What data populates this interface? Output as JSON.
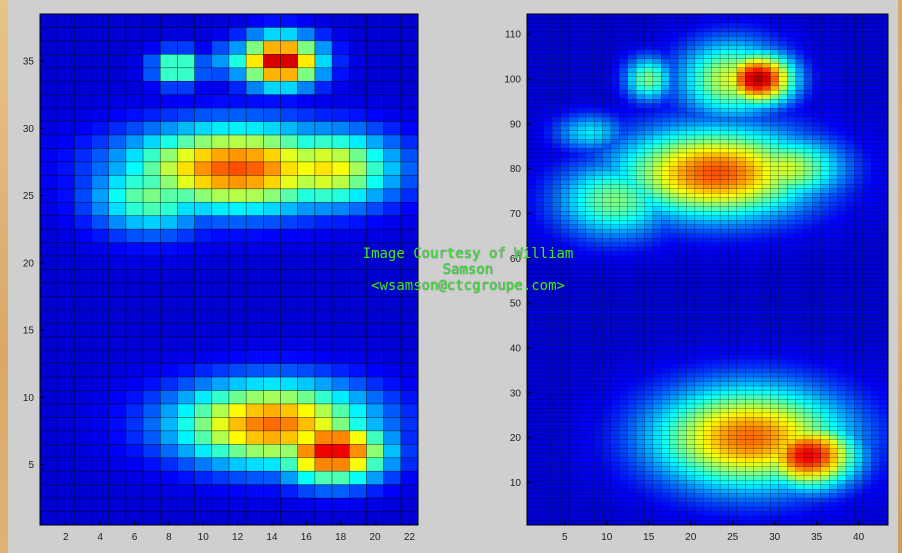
{
  "watermark": {
    "line1": "Image Courtesy of William",
    "line2": "Samson",
    "line3": "<wsamson@ctcgroupe.com>"
  },
  "colors": {
    "colormap": [
      "#00008f",
      "#0000ff",
      "#0080ff",
      "#00ffff",
      "#80ff80",
      "#ffff00",
      "#ff8000",
      "#ff0000",
      "#800000"
    ],
    "frame": "#cfcfcf"
  },
  "chart_data": [
    {
      "type": "heatmap",
      "colormap": "jet",
      "grid": "on",
      "xticks": [
        "2",
        "4",
        "6",
        "8",
        "10",
        "12",
        "14",
        "16",
        "18",
        "20",
        "22"
      ],
      "yticks": [
        "5",
        "10",
        "15",
        "20",
        "25",
        "30",
        "35"
      ],
      "xlim": [
        0.5,
        22.5
      ],
      "ylim": [
        0.5,
        38.5
      ],
      "blobs": [
        {
          "x": 14.5,
          "y": 35,
          "sx": 1.6,
          "sy": 1.3,
          "v": 0.95
        },
        {
          "x": 17.5,
          "y": 6,
          "sx": 2.2,
          "sy": 1.6,
          "v": 0.9
        },
        {
          "x": 14,
          "y": 8,
          "sx": 4,
          "sy": 2.2,
          "v": 0.75
        },
        {
          "x": 12,
          "y": 27,
          "sx": 4.5,
          "sy": 2.2,
          "v": 0.78
        },
        {
          "x": 17,
          "y": 27,
          "sx": 3,
          "sy": 2,
          "v": 0.62
        },
        {
          "x": 7,
          "y": 25,
          "sx": 2.5,
          "sy": 2,
          "v": 0.45
        },
        {
          "x": 8.5,
          "y": 34.5,
          "sx": 1,
          "sy": 0.9,
          "v": 0.5
        },
        {
          "x": 12,
          "y": 35,
          "sx": 1,
          "sy": 1,
          "v": 0.35
        }
      ]
    },
    {
      "type": "heatmap",
      "colormap": "jet",
      "grid": "on",
      "xticks": [
        "5",
        "10",
        "15",
        "20",
        "25",
        "30",
        "35",
        "40"
      ],
      "yticks": [
        "10",
        "20",
        "30",
        "40",
        "50",
        "60",
        "70",
        "80",
        "90",
        "100",
        "110"
      ],
      "xlim": [
        0.5,
        43.5
      ],
      "ylim": [
        0.5,
        114.5
      ],
      "blobs": [
        {
          "x": 28,
          "y": 100,
          "sx": 3,
          "sy": 4,
          "v": 0.95
        },
        {
          "x": 25,
          "y": 100,
          "sx": 4.5,
          "sy": 6,
          "v": 0.55
        },
        {
          "x": 15,
          "y": 100,
          "sx": 2,
          "sy": 3.5,
          "v": 0.45
        },
        {
          "x": 23,
          "y": 79,
          "sx": 8,
          "sy": 7,
          "v": 0.78
        },
        {
          "x": 31,
          "y": 80,
          "sx": 5,
          "sy": 5,
          "v": 0.55
        },
        {
          "x": 11,
          "y": 73,
          "sx": 5,
          "sy": 6,
          "v": 0.45
        },
        {
          "x": 8,
          "y": 88,
          "sx": 3,
          "sy": 3,
          "v": 0.3
        },
        {
          "x": 34,
          "y": 16,
          "sx": 4,
          "sy": 5,
          "v": 0.88
        },
        {
          "x": 27,
          "y": 20,
          "sx": 8,
          "sy": 8,
          "v": 0.75
        }
      ]
    }
  ]
}
